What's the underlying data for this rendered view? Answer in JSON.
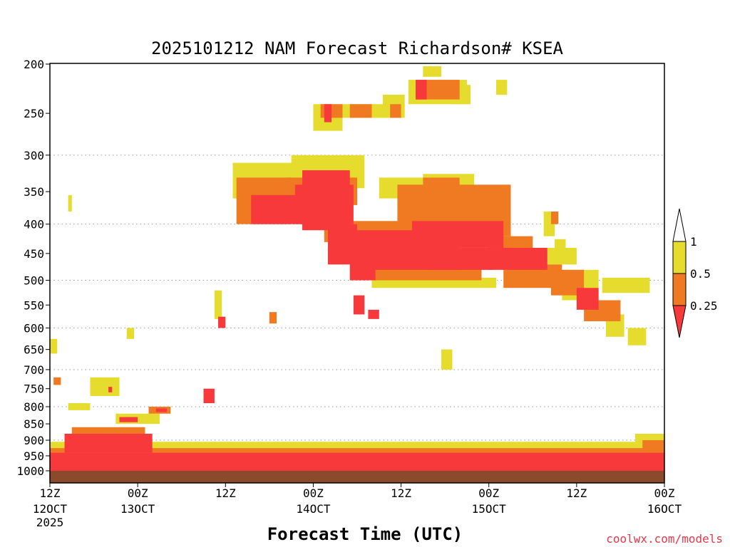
{
  "chart_data": {
    "type": "heatmap",
    "title": "2025101212 NAM Forecast Richardson# KSEA",
    "xlabel": "Forecast Time (UTC)",
    "ylabel": "",
    "ylim": [
      1000,
      200
    ],
    "yaxis_scale": "pressure (hPa), log-like",
    "grid": "horizontal dotted lines at 300, 400, 500, 600, 700, 800, 900 hPa",
    "y_ticks": [
      "200",
      "250",
      "300",
      "350",
      "400",
      "450",
      "500",
      "550",
      "600",
      "650",
      "700",
      "750",
      "800",
      "850",
      "900",
      "950",
      "1000"
    ],
    "x_ticks": [
      {
        "hour": 0,
        "top": "12Z",
        "bottom": "12OCT",
        "extra": "2025"
      },
      {
        "hour": 12,
        "top": "00Z",
        "bottom": "13OCT"
      },
      {
        "hour": 24,
        "top": "12Z",
        "bottom": ""
      },
      {
        "hour": 36,
        "top": "00Z",
        "bottom": "14OCT"
      },
      {
        "hour": 48,
        "top": "12Z",
        "bottom": ""
      },
      {
        "hour": 60,
        "top": "00Z",
        "bottom": "15OCT"
      },
      {
        "hour": 72,
        "top": "12Z",
        "bottom": ""
      },
      {
        "hour": 84,
        "top": "00Z",
        "bottom": "16OCT"
      }
    ],
    "xlim_hours": [
      0,
      84
    ],
    "legend": {
      "placement": "right",
      "labels": [
        "1",
        "0.5",
        "0.25"
      ],
      "bins": [
        {
          "range": "> 1",
          "color": "#ffffff"
        },
        {
          "range": "0.5 - 1",
          "color": "#e5dc2e"
        },
        {
          "range": "0.25 - 0.5",
          "color": "#ef7a22"
        },
        {
          "range": "< 0.25",
          "color": "#f8393c"
        }
      ]
    },
    "colors": {
      "yellow": "#e5dc2e",
      "orange": "#ef7a22",
      "red": "#f8393c",
      "ground": "#8b4a2b"
    },
    "regions": [
      {
        "cat": "yellow",
        "t": [
          25.0,
          35.0
        ],
        "p": [
          310,
          360
        ]
      },
      {
        "cat": "orange",
        "t": [
          25.5,
          33.0
        ],
        "p": [
          330,
          400
        ]
      },
      {
        "cat": "red",
        "t": [
          27.5,
          35.0
        ],
        "p": [
          355,
          400
        ]
      },
      {
        "cat": "yellow",
        "t": [
          33.0,
          43.0
        ],
        "p": [
          300,
          345
        ]
      },
      {
        "cat": "orange",
        "t": [
          32.5,
          42.0
        ],
        "p": [
          330,
          370
        ]
      },
      {
        "cat": "red",
        "t": [
          34.5,
          41.0
        ],
        "p": [
          320,
          410
        ]
      },
      {
        "cat": "red",
        "t": [
          33.5,
          41.5
        ],
        "p": [
          340,
          400
        ]
      },
      {
        "cat": "orange",
        "t": [
          37.5,
          44.5
        ],
        "p": [
          400,
          430
        ]
      },
      {
        "cat": "red",
        "t": [
          38.0,
          42.0
        ],
        "p": [
          400,
          470
        ]
      },
      {
        "cat": "orange",
        "t": [
          40.0,
          49.0
        ],
        "p": [
          395,
          420
        ]
      },
      {
        "cat": "red",
        "t": [
          42.0,
          56.0
        ],
        "p": [
          410,
          480
        ]
      },
      {
        "cat": "red",
        "t": [
          41.0,
          44.5
        ],
        "p": [
          430,
          500
        ]
      },
      {
        "cat": "orange",
        "t": [
          44.0,
          59.0
        ],
        "p": [
          470,
          500
        ]
      },
      {
        "cat": "yellow",
        "t": [
          44.0,
          61.0
        ],
        "p": [
          495,
          515
        ]
      },
      {
        "cat": "yellow",
        "t": [
          45.0,
          52.0
        ],
        "p": [
          330,
          360
        ]
      },
      {
        "cat": "orange",
        "t": [
          47.5,
          56.0
        ],
        "p": [
          340,
          420
        ]
      },
      {
        "cat": "orange",
        "t": [
          53.0,
          63.0
        ],
        "p": [
          340,
          420
        ]
      },
      {
        "cat": "yellow",
        "t": [
          51.0,
          58.0
        ],
        "p": [
          325,
          360
        ]
      },
      {
        "cat": "orange",
        "t": [
          51.0,
          56.0
        ],
        "p": [
          330,
          360
        ]
      },
      {
        "cat": "red",
        "t": [
          49.5,
          62.0
        ],
        "p": [
          395,
          440
        ]
      },
      {
        "cat": "red",
        "t": [
          52.0,
          60.5
        ],
        "p": [
          440,
          480
        ]
      },
      {
        "cat": "orange",
        "t": [
          60.0,
          66.0
        ],
        "p": [
          420,
          450
        ]
      },
      {
        "cat": "red",
        "t": [
          60.0,
          68.0
        ],
        "p": [
          440,
          480
        ]
      },
      {
        "cat": "orange",
        "t": [
          62.0,
          70.0
        ],
        "p": [
          470,
          515
        ]
      },
      {
        "cat": "yellow",
        "t": [
          68.0,
          72.0
        ],
        "p": [
          440,
          470
        ]
      },
      {
        "cat": "yellow",
        "t": [
          70.0,
          75.0
        ],
        "p": [
          480,
          540
        ]
      },
      {
        "cat": "orange",
        "t": [
          68.5,
          73.0
        ],
        "p": [
          480,
          530
        ]
      },
      {
        "cat": "red",
        "t": [
          72.0,
          75.0
        ],
        "p": [
          515,
          560
        ]
      },
      {
        "cat": "orange",
        "t": [
          73.0,
          78.0
        ],
        "p": [
          540,
          585
        ]
      },
      {
        "cat": "yellow",
        "t": [
          75.5,
          82.0
        ],
        "p": [
          495,
          525
        ]
      },
      {
        "cat": "yellow",
        "t": [
          76.0,
          78.5
        ],
        "p": [
          570,
          620
        ]
      },
      {
        "cat": "yellow",
        "t": [
          79.0,
          81.5
        ],
        "p": [
          600,
          640
        ]
      },
      {
        "cat": "red",
        "t": [
          41.5,
          43.0
        ],
        "p": [
          530,
          570
        ]
      },
      {
        "cat": "red",
        "t": [
          43.5,
          45.0
        ],
        "p": [
          560,
          580
        ]
      },
      {
        "cat": "orange",
        "t": [
          30.0,
          31.0
        ],
        "p": [
          565,
          590
        ]
      },
      {
        "cat": "yellow",
        "t": [
          36.0,
          40.0
        ],
        "p": [
          240,
          270
        ]
      },
      {
        "cat": "orange",
        "t": [
          37.0,
          40.0
        ],
        "p": [
          240,
          255
        ]
      },
      {
        "cat": "red",
        "t": [
          37.5,
          38.5
        ],
        "p": [
          240,
          260
        ]
      },
      {
        "cat": "yellow",
        "t": [
          40.0,
          46.0
        ],
        "p": [
          240,
          255
        ]
      },
      {
        "cat": "orange",
        "t": [
          41.0,
          44.0
        ],
        "p": [
          240,
          255
        ]
      },
      {
        "cat": "yellow",
        "t": [
          45.5,
          48.5
        ],
        "p": [
          230,
          255
        ]
      },
      {
        "cat": "orange",
        "t": [
          46.5,
          48.0
        ],
        "p": [
          240,
          255
        ]
      },
      {
        "cat": "yellow",
        "t": [
          49.0,
          57.0
        ],
        "p": [
          215,
          240
        ]
      },
      {
        "cat": "orange",
        "t": [
          50.0,
          56.0
        ],
        "p": [
          215,
          235
        ]
      },
      {
        "cat": "red",
        "t": [
          50.0,
          51.5
        ],
        "p": [
          215,
          235
        ]
      },
      {
        "cat": "yellow",
        "t": [
          51.0,
          53.5
        ],
        "p": [
          202,
          212
        ]
      },
      {
        "cat": "yellow",
        "t": [
          55.0,
          57.5
        ],
        "p": [
          220,
          240
        ]
      },
      {
        "cat": "yellow",
        "t": [
          61.0,
          62.5
        ],
        "p": [
          215,
          230
        ]
      },
      {
        "cat": "yellow",
        "t": [
          67.5,
          69.0
        ],
        "p": [
          380,
          420
        ]
      },
      {
        "cat": "orange",
        "t": [
          68.5,
          69.5
        ],
        "p": [
          380,
          400
        ]
      },
      {
        "cat": "yellow",
        "t": [
          69.0,
          70.5
        ],
        "p": [
          425,
          450
        ]
      },
      {
        "cat": "yellow",
        "t": [
          53.5,
          55.0
        ],
        "p": [
          650,
          700
        ]
      },
      {
        "cat": "red",
        "t": [
          21.0,
          22.5
        ],
        "p": [
          750,
          790
        ]
      },
      {
        "cat": "yellow",
        "t": [
          0.0,
          1.0
        ],
        "p": [
          625,
          660
        ]
      },
      {
        "cat": "yellow",
        "t": [
          2.5,
          3.0
        ],
        "p": [
          355,
          380
        ]
      },
      {
        "cat": "orange",
        "t": [
          0.5,
          1.5
        ],
        "p": [
          720,
          740
        ]
      },
      {
        "cat": "yellow",
        "t": [
          5.5,
          9.5
        ],
        "p": [
          720,
          770
        ]
      },
      {
        "cat": "red",
        "t": [
          8.0,
          8.5
        ],
        "p": [
          745,
          760
        ]
      },
      {
        "cat": "yellow",
        "t": [
          2.5,
          5.5
        ],
        "p": [
          790,
          810
        ]
      },
      {
        "cat": "orange",
        "t": [
          13.5,
          16.5
        ],
        "p": [
          800,
          820
        ]
      },
      {
        "cat": "red",
        "t": [
          14.5,
          16.0
        ],
        "p": [
          805,
          815
        ]
      },
      {
        "cat": "yellow",
        "t": [
          9.0,
          15.0
        ],
        "p": [
          820,
          850
        ]
      },
      {
        "cat": "red",
        "t": [
          9.5,
          12.0
        ],
        "p": [
          830,
          845
        ]
      },
      {
        "cat": "yellow",
        "t": [
          22.5,
          23.5
        ],
        "p": [
          520,
          580
        ]
      },
      {
        "cat": "red",
        "t": [
          23.0,
          24.0
        ],
        "p": [
          575,
          600
        ]
      },
      {
        "cat": "yellow",
        "t": [
          10.5,
          11.5
        ],
        "p": [
          600,
          625
        ]
      },
      {
        "cat": "yellow",
        "t": [
          0.0,
          84.0
        ],
        "p": [
          905,
          1000
        ]
      },
      {
        "cat": "orange",
        "t": [
          0.0,
          84.0
        ],
        "p": [
          925,
          1000
        ]
      },
      {
        "cat": "red",
        "t": [
          0.0,
          84.0
        ],
        "p": [
          940,
          1000
        ]
      },
      {
        "cat": "red",
        "t": [
          2.0,
          14.0
        ],
        "p": [
          880,
          940
        ]
      },
      {
        "cat": "orange",
        "t": [
          3.0,
          13.0
        ],
        "p": [
          860,
          900
        ]
      },
      {
        "cat": "yellow",
        "t": [
          61.0,
          68.0
        ],
        "p": [
          920,
          960
        ]
      },
      {
        "cat": "yellow",
        "t": [
          80.0,
          84.0
        ],
        "p": [
          880,
          940
        ]
      },
      {
        "cat": "orange",
        "t": [
          81.0,
          84.0
        ],
        "p": [
          900,
          950
        ]
      }
    ]
  },
  "footer": {
    "credit": "coolwx.com/models"
  }
}
